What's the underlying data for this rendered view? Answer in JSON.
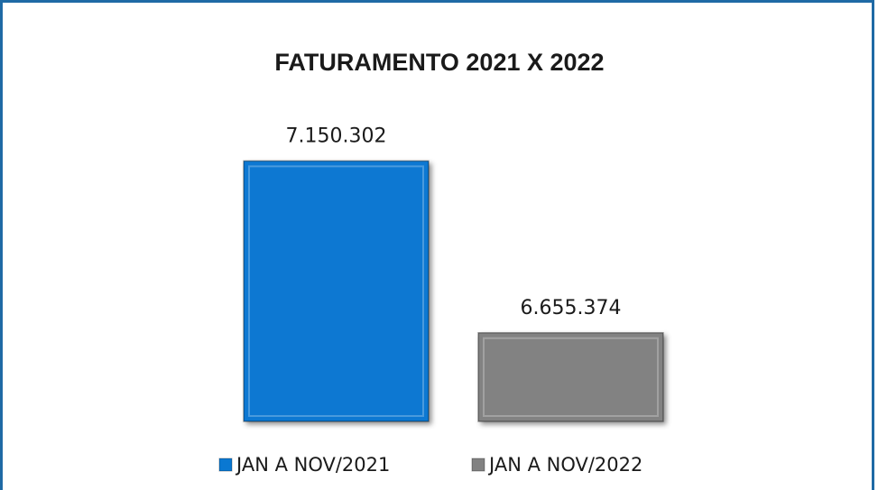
{
  "chart_data": {
    "type": "bar",
    "title": "FATURAMENTO 2021 X 2022",
    "series": [
      {
        "name": "JAN A NOV/2021",
        "color": "#0a78d2",
        "values": [
          7150302
        ],
        "value_labels": [
          "7.150.302"
        ]
      },
      {
        "name": "JAN A NOV/2022",
        "color": "#828282",
        "values": [
          6655374
        ],
        "value_labels": [
          "6.655.374"
        ]
      }
    ],
    "ylim": [
      6400000,
      7250000
    ],
    "legend": "bottom"
  }
}
